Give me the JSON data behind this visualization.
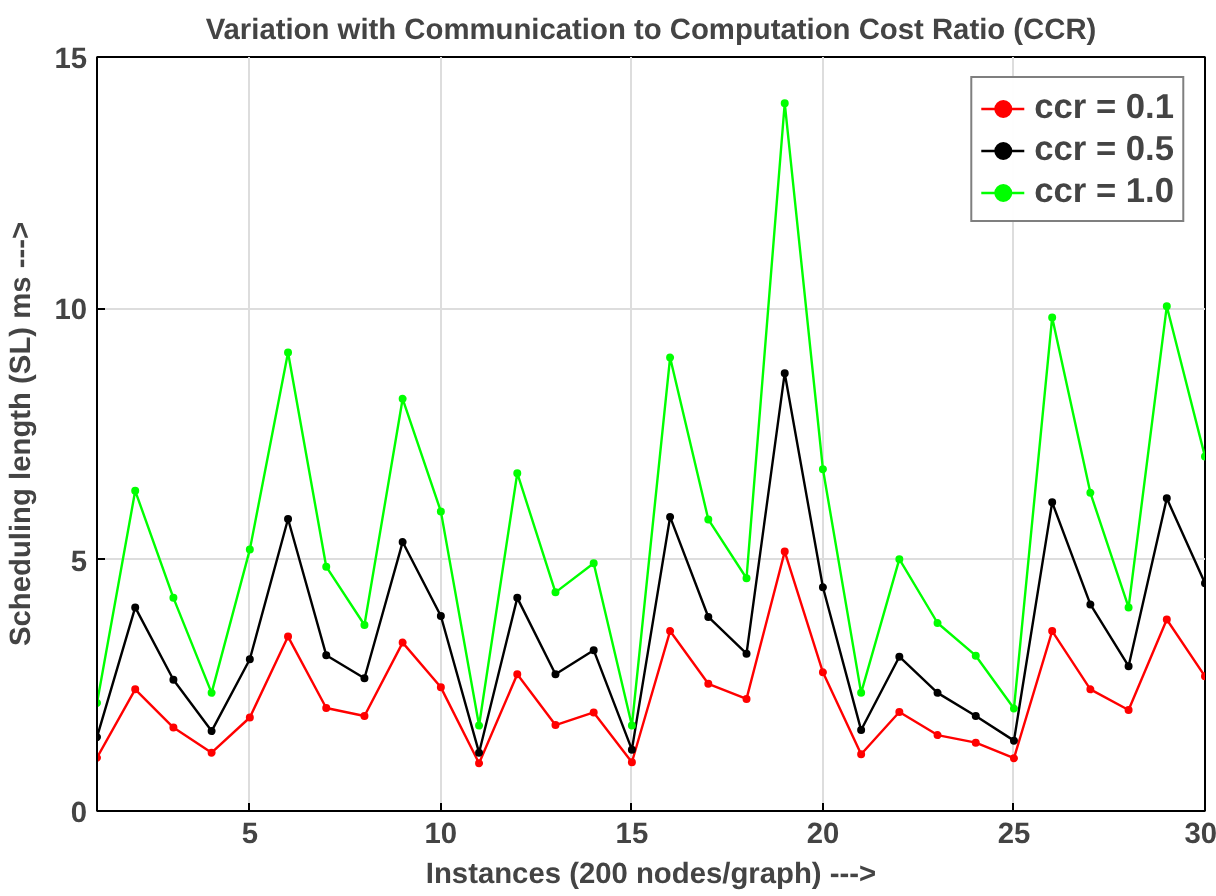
{
  "chart_data": {
    "type": "line",
    "title": "Variation with Communication to Computation Cost Ratio (CCR)",
    "xlabel": "Instances (200 nodes/graph) --->",
    "ylabel": "Scheduling length (SL) ms --->",
    "x": [
      1,
      2,
      3,
      4,
      5,
      6,
      7,
      8,
      9,
      10,
      11,
      12,
      13,
      14,
      15,
      16,
      17,
      18,
      19,
      20,
      21,
      22,
      23,
      24,
      25,
      26,
      27,
      28,
      29,
      30
    ],
    "xlim": [
      1,
      30
    ],
    "xticks": [
      5,
      10,
      15,
      20,
      25,
      30
    ],
    "ylim": [
      0,
      15
    ],
    "yticks": [
      0,
      5,
      10,
      15
    ],
    "grid": true,
    "legend": "top right",
    "marker": "circle",
    "line_style": "solid",
    "series": [
      {
        "name": "ccr = 0.1",
        "color": "#ff0000",
        "values": [
          1.06,
          2.42,
          1.66,
          1.16,
          1.86,
          3.47,
          2.05,
          1.89,
          3.35,
          2.46,
          0.95,
          2.72,
          1.71,
          1.96,
          0.97,
          3.58,
          2.53,
          2.23,
          5.16,
          2.76,
          1.13,
          1.97,
          1.51,
          1.36,
          1.05,
          3.58,
          2.42,
          2.01,
          3.81,
          2.68
        ]
      },
      {
        "name": "ccr = 0.5",
        "color": "#000000",
        "values": [
          1.47,
          4.05,
          2.61,
          1.59,
          3.02,
          5.81,
          3.1,
          2.64,
          5.35,
          3.88,
          1.16,
          4.24,
          2.72,
          3.2,
          1.22,
          5.85,
          3.86,
          3.13,
          8.71,
          4.45,
          1.61,
          3.07,
          2.35,
          1.89,
          1.4,
          6.14,
          4.11,
          2.88,
          6.22,
          4.53
        ]
      },
      {
        "name": "ccr = 1.0",
        "color": "#00ff00",
        "values": [
          2.15,
          6.37,
          4.24,
          2.35,
          5.2,
          9.12,
          4.86,
          3.7,
          8.2,
          5.96,
          1.7,
          6.72,
          4.35,
          4.93,
          1.7,
          9.02,
          5.8,
          4.63,
          14.08,
          6.8,
          2.35,
          5.01,
          3.74,
          3.09,
          2.04,
          9.82,
          6.33,
          4.05,
          10.04,
          7.05
        ]
      }
    ]
  }
}
